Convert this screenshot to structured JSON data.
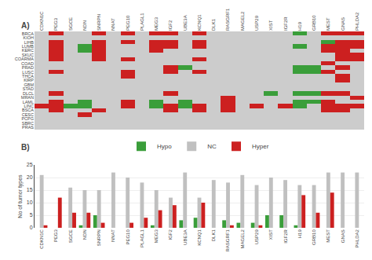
{
  "chart_data": [
    {
      "type": "heatmap",
      "title": "A)",
      "x": [
        "CDKN1C",
        "PEG3",
        "SGCE",
        "NDN",
        "SNRPN",
        "NNAT",
        "PEG10",
        "PLAGL1",
        "MEG3",
        "IGF2",
        "UBE3A",
        "KCNQ1",
        "DLK1",
        "RASGRF1",
        "MAGEL2",
        "USP29",
        "XIST",
        "IGF2R",
        "H19",
        "GRB10",
        "MEST",
        "GNAS",
        "PHLDA2"
      ],
      "y": [
        "BRCA",
        "KIOH",
        "LIHB",
        "LUMB",
        "KERC",
        "SKUC",
        "COARMA",
        "COAD",
        "PRAD",
        "LUSC",
        "THCA",
        "KIRP",
        "GBM",
        "STAD",
        "DLCL",
        "MRAN",
        "LAML",
        "LINC",
        "BSCA",
        "CESC",
        "PCPG",
        "SBRC",
        "PRAS"
      ],
      "cells": [
        [
          0,
          2,
          0,
          0,
          2,
          0,
          2,
          0,
          2,
          2,
          0,
          2,
          0,
          0,
          0,
          0,
          0,
          0,
          1,
          0,
          2,
          2,
          2
        ],
        [
          0,
          0,
          0,
          0,
          0,
          0,
          0,
          0,
          0,
          0,
          0,
          0,
          0,
          0,
          0,
          0,
          0,
          0,
          0,
          0,
          0,
          0,
          0
        ],
        [
          0,
          2,
          0,
          0,
          2,
          0,
          2,
          0,
          2,
          2,
          0,
          2,
          0,
          0,
          0,
          0,
          0,
          0,
          0,
          0,
          1,
          2,
          2
        ],
        [
          0,
          2,
          0,
          1,
          2,
          0,
          0,
          0,
          2,
          2,
          0,
          2,
          0,
          0,
          0,
          0,
          0,
          0,
          1,
          0,
          2,
          2,
          2
        ],
        [
          0,
          2,
          0,
          1,
          2,
          0,
          0,
          0,
          2,
          0,
          0,
          0,
          0,
          0,
          0,
          0,
          0,
          0,
          0,
          0,
          2,
          2,
          0
        ],
        [
          0,
          2,
          0,
          0,
          2,
          0,
          0,
          0,
          0,
          0,
          0,
          0,
          0,
          0,
          0,
          0,
          0,
          0,
          0,
          0,
          0,
          2,
          2
        ],
        [
          0,
          2,
          0,
          0,
          2,
          0,
          2,
          0,
          0,
          0,
          0,
          2,
          0,
          0,
          0,
          0,
          0,
          0,
          0,
          0,
          0,
          2,
          2
        ],
        [
          0,
          0,
          0,
          0,
          0,
          0,
          0,
          0,
          0,
          0,
          0,
          0,
          0,
          0,
          0,
          0,
          0,
          0,
          0,
          0,
          2,
          0,
          0
        ],
        [
          0,
          0,
          0,
          0,
          0,
          0,
          0,
          0,
          0,
          2,
          1,
          0,
          0,
          0,
          0,
          0,
          0,
          0,
          1,
          1,
          0,
          2,
          0
        ],
        [
          0,
          2,
          0,
          0,
          0,
          0,
          2,
          0,
          0,
          2,
          0,
          2,
          0,
          0,
          0,
          0,
          0,
          0,
          1,
          1,
          2,
          0,
          0
        ],
        [
          0,
          0,
          0,
          0,
          0,
          0,
          2,
          0,
          0,
          0,
          0,
          0,
          0,
          0,
          0,
          0,
          0,
          0,
          0,
          0,
          0,
          2,
          0
        ],
        [
          0,
          0,
          0,
          0,
          0,
          0,
          0,
          0,
          0,
          0,
          0,
          0,
          0,
          0,
          0,
          0,
          0,
          0,
          0,
          0,
          0,
          2,
          0
        ],
        [
          0,
          0,
          0,
          0,
          0,
          0,
          0,
          0,
          0,
          0,
          0,
          0,
          0,
          0,
          0,
          0,
          0,
          0,
          0,
          0,
          0,
          0,
          0
        ],
        [
          0,
          0,
          0,
          0,
          0,
          0,
          0,
          0,
          0,
          0,
          0,
          0,
          0,
          0,
          0,
          0,
          0,
          0,
          0,
          0,
          0,
          0,
          0
        ],
        [
          0,
          2,
          0,
          0,
          0,
          0,
          0,
          0,
          0,
          2,
          0,
          0,
          0,
          0,
          0,
          0,
          1,
          0,
          1,
          1,
          2,
          2,
          0
        ],
        [
          0,
          0,
          0,
          0,
          0,
          0,
          0,
          0,
          0,
          0,
          0,
          0,
          0,
          2,
          0,
          0,
          0,
          0,
          0,
          0,
          0,
          0,
          2
        ],
        [
          0,
          2,
          0,
          1,
          0,
          0,
          2,
          0,
          1,
          0,
          1,
          0,
          0,
          2,
          0,
          0,
          0,
          0,
          1,
          1,
          2,
          0,
          0
        ],
        [
          2,
          2,
          1,
          1,
          0,
          0,
          2,
          0,
          1,
          2,
          1,
          2,
          0,
          2,
          0,
          2,
          0,
          2,
          1,
          0,
          2,
          2,
          2
        ],
        [
          0,
          2,
          0,
          0,
          2,
          0,
          0,
          0,
          0,
          2,
          0,
          2,
          0,
          2,
          0,
          0,
          0,
          0,
          0,
          0,
          2,
          2,
          0
        ],
        [
          0,
          0,
          0,
          2,
          0,
          0,
          0,
          0,
          0,
          0,
          0,
          0,
          0,
          0,
          0,
          0,
          0,
          0,
          0,
          0,
          0,
          0,
          0
        ],
        [
          0,
          0,
          0,
          0,
          0,
          0,
          0,
          0,
          0,
          0,
          0,
          0,
          0,
          0,
          0,
          0,
          0,
          0,
          0,
          0,
          0,
          0,
          0
        ],
        [
          0,
          0,
          0,
          0,
          0,
          0,
          0,
          0,
          0,
          0,
          0,
          0,
          0,
          0,
          0,
          0,
          0,
          0,
          0,
          0,
          0,
          0,
          0
        ],
        [
          0,
          0,
          0,
          0,
          0,
          0,
          0,
          0,
          0,
          0,
          0,
          0,
          0,
          0,
          0,
          0,
          0,
          0,
          0,
          0,
          0,
          0,
          0
        ]
      ],
      "colors": [
        "#cccccc",
        "#3a9e3a",
        "#cc2020"
      ]
    },
    {
      "type": "bar",
      "title": "B)",
      "categories": [
        "CDKN1C",
        "PEG3",
        "SGCE",
        "NDN",
        "SNRPN",
        "NNAT",
        "PEG10",
        "PLAGL1",
        "MEG3",
        "IGF2",
        "UBE3A",
        "KCNQ1",
        "DLK1",
        "RASGRF1",
        "MAGEL2",
        "USP29",
        "XIST",
        "IGF2R",
        "H19",
        "GRB10",
        "MEST",
        "GNAS",
        "PHLDA2"
      ],
      "series": [
        {
          "name": "Hypo",
          "color": "#3a9e3a",
          "values": [
            0,
            0,
            0,
            1,
            5,
            0,
            0,
            0,
            1,
            0,
            3,
            4,
            0,
            3,
            2,
            2,
            5,
            5,
            1,
            0,
            0,
            0,
            0
          ]
        },
        {
          "name": "NC",
          "color": "#c0c0c0",
          "values": [
            21,
            0,
            16,
            15,
            15,
            22,
            20,
            18,
            15,
            12,
            22,
            12,
            19,
            18,
            21,
            17,
            20,
            19,
            17,
            17,
            22,
            22,
            22
          ]
        },
        {
          "name": "Hyper",
          "color": "#cc2020",
          "values": [
            1,
            12,
            6,
            6,
            2,
            0,
            2,
            4,
            7,
            9,
            0,
            10,
            0,
            1,
            0,
            1,
            0,
            0,
            13,
            6,
            14,
            0,
            0
          ]
        }
      ],
      "ylabel": "No of tumor types",
      "ylim": [
        0,
        25
      ],
      "yticks": [
        0,
        5,
        10,
        15,
        20,
        25
      ],
      "grid": true,
      "legend": "top"
    }
  ]
}
